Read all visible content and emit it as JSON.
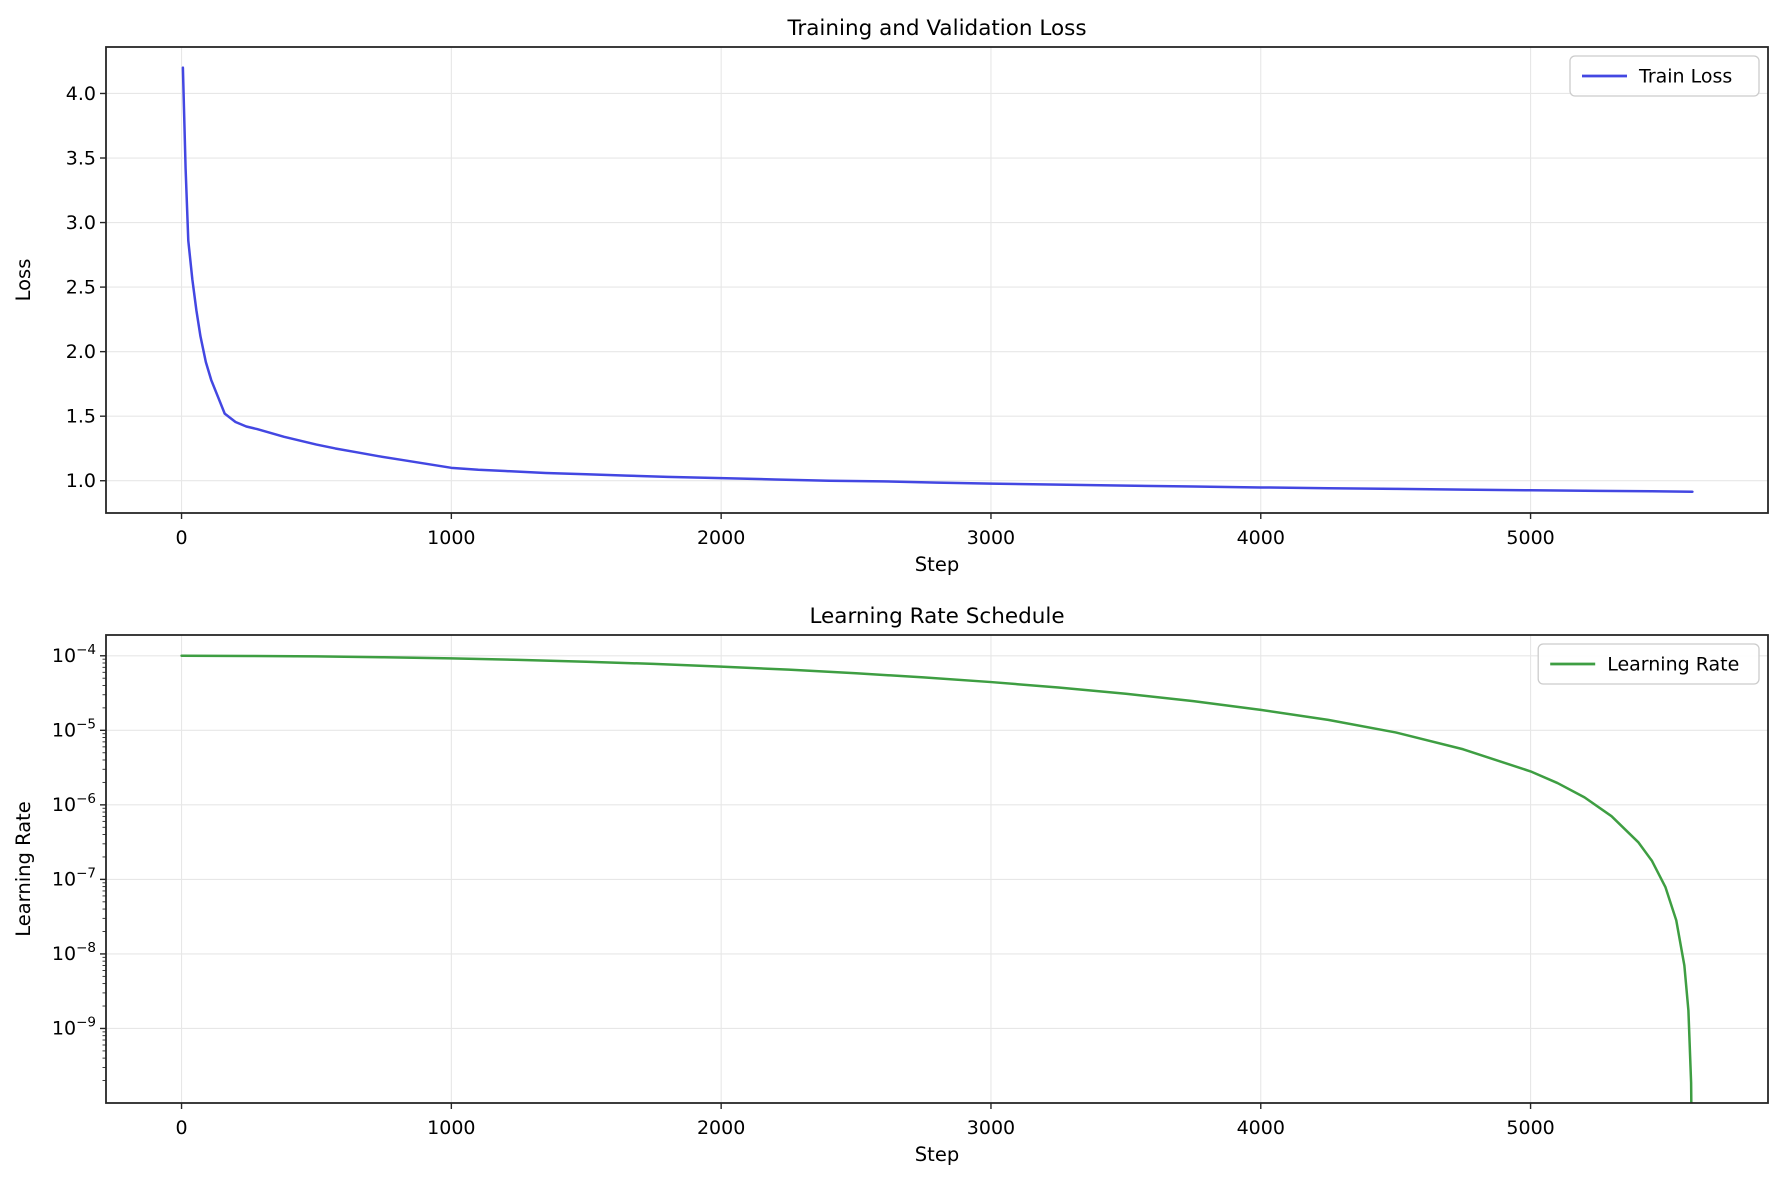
{
  "figure": {
    "background": "#ffffff",
    "spine_color": "#262626",
    "grid_color": "#e7e7e7",
    "tick_color": "#262626",
    "legend_border_color": "#cccccc"
  },
  "chart_data": [
    {
      "type": "line",
      "title": "Training and Validation Loss",
      "xlabel": "Step",
      "ylabel": "Loss",
      "xlim": [
        -280,
        5880
      ],
      "ylim": [
        0.75,
        4.36
      ],
      "yscale": "linear",
      "xticks": [
        0,
        1000,
        2000,
        3000,
        4000,
        5000
      ],
      "yticks": [
        1.0,
        1.5,
        2.0,
        2.5,
        3.0,
        3.5,
        4.0
      ],
      "ytick_format": "fixed1",
      "grid": true,
      "legend": {
        "position": "upper-right"
      },
      "series": [
        {
          "name": "Train Loss",
          "color": "#4347e2",
          "x": [
            5,
            15,
            25,
            40,
            55,
            70,
            90,
            110,
            135,
            160,
            200,
            240,
            280,
            330,
            380,
            440,
            500,
            570,
            650,
            730,
            820,
            910,
            1000,
            1100,
            1200,
            1350,
            1500,
            1650,
            1800,
            2000,
            2200,
            2400,
            2600,
            2800,
            3000,
            3250,
            3500,
            3750,
            4000,
            4250,
            4500,
            4750,
            5000,
            5250,
            5450,
            5600
          ],
          "y": [
            4.2,
            3.42,
            2.86,
            2.56,
            2.32,
            2.12,
            1.92,
            1.78,
            1.65,
            1.52,
            1.455,
            1.42,
            1.4,
            1.37,
            1.34,
            1.31,
            1.28,
            1.25,
            1.22,
            1.19,
            1.16,
            1.13,
            1.1,
            1.085,
            1.075,
            1.06,
            1.05,
            1.04,
            1.03,
            1.02,
            1.01,
            1.0,
            0.995,
            0.985,
            0.978,
            0.97,
            0.962,
            0.955,
            0.948,
            0.942,
            0.937,
            0.931,
            0.926,
            0.921,
            0.918,
            0.915
          ]
        }
      ]
    },
    {
      "type": "line",
      "title": "Learning Rate Schedule",
      "xlabel": "Step",
      "ylabel": "Learning Rate",
      "xlim": [
        -280,
        5880
      ],
      "ylim": [
        1e-10,
        0.00019
      ],
      "yscale": "log",
      "xticks": [
        0,
        1000,
        2000,
        3000,
        4000,
        5000
      ],
      "yticks": [
        0.0001,
        1e-05,
        1e-06,
        1e-07,
        1e-08,
        1e-09
      ],
      "ytick_format": "log",
      "grid": true,
      "legend": {
        "position": "upper-right"
      },
      "series": [
        {
          "name": "Learning Rate",
          "color": "#3e9e42",
          "x": [
            0,
            250,
            500,
            750,
            1000,
            1250,
            1500,
            1750,
            2000,
            2250,
            2500,
            2750,
            3000,
            3250,
            3500,
            3750,
            4000,
            4250,
            4500,
            4750,
            5000,
            5100,
            5200,
            5300,
            5400,
            5450,
            5500,
            5540,
            5570,
            5585,
            5595,
            5599
          ],
          "y": [
            0.0001,
            9.95e-05,
            9.81e-05,
            9.56e-05,
            9.23e-05,
            8.82e-05,
            8.33e-05,
            7.78e-05,
            7.16e-05,
            6.51e-05,
            5.82e-05,
            5.14e-05,
            4.44e-05,
            3.75e-05,
            3.09e-05,
            2.46e-05,
            1.88e-05,
            1.38e-05,
            9.37e-06,
            5.57e-06,
            2.81e-06,
            1.96e-06,
            1.26e-06,
            7.05e-07,
            3.13e-07,
            1.77e-07,
            7.85e-08,
            2.82e-08,
            7e-09,
            1.74e-09,
            1.87e-10,
            7.5e-12
          ]
        }
      ]
    }
  ]
}
